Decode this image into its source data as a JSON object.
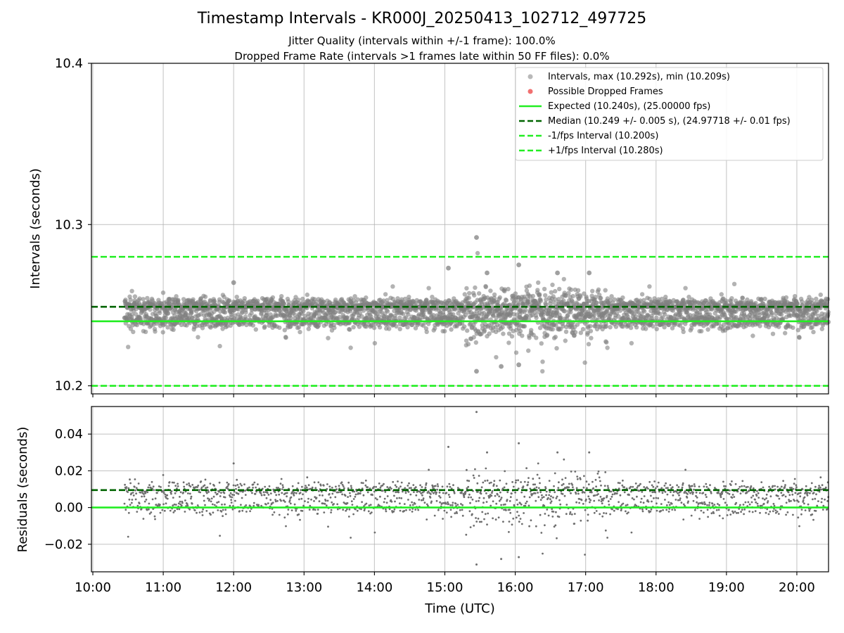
{
  "chart_data": {
    "type": "scatter",
    "title": "Timestamp Intervals - KR000J_20250413_102712_497725",
    "subtitle_lines": [
      "Jitter Quality (intervals within +/-1 frame): 100.0%",
      "Dropped Frame Rate (intervals >1 frames late within 50 FF files): 0.0%"
    ],
    "xlabel": "Time (UTC)",
    "x_tick_labels": [
      "10:00",
      "11:00",
      "12:00",
      "13:00",
      "14:00",
      "15:00",
      "16:00",
      "17:00",
      "18:00",
      "19:00",
      "20:00"
    ],
    "x_tick_hours": [
      10,
      11,
      12,
      13,
      14,
      15,
      16,
      17,
      18,
      19,
      20
    ],
    "xlim_hours": [
      9.98,
      20.45
    ],
    "data_span_hours": [
      10.45,
      20.45
    ],
    "grid": true,
    "legend_position": "top-right",
    "panels": [
      {
        "name": "intervals",
        "ylabel": "Intervals (seconds)",
        "ylim": [
          10.195,
          10.4
        ],
        "y_ticks": [
          10.2,
          10.3,
          10.4
        ],
        "y_tick_labels": [
          "10.2",
          "10.3",
          "10.4"
        ],
        "scatter_series": "Intervals, max (10.292s), min (10.209s)",
        "scatter_color": "#808080",
        "dropped_frames_series": "Possible Dropped Frames",
        "dropped_frames_color": "#f06060",
        "dropped_frames_count": 0,
        "max_interval": 10.292,
        "min_interval": 10.209,
        "lines": [
          {
            "name": "Expected (10.240s), (25.00000 fps)",
            "y": 10.24,
            "color": "#22ee22",
            "style": "solid"
          },
          {
            "name": "Median (10.249 +/- 0.005 s), (24.97718 +/- 0.01 fps)",
            "y": 10.249,
            "color": "#006400",
            "style": "dashed"
          },
          {
            "name": "-1/fps Interval (10.200s)",
            "y": 10.2,
            "color": "#22ee22",
            "style": "dashed"
          },
          {
            "name": "+1/fps Interval (10.280s)",
            "y": 10.28,
            "color": "#22ee22",
            "style": "dashed"
          }
        ],
        "clusters": {
          "upper_mean": 10.2495,
          "lower_mean": 10.2405,
          "spread_sd": 0.0025
        },
        "outliers": [
          {
            "t": 15.45,
            "y": 10.292
          },
          {
            "t": 15.45,
            "y": 10.209
          },
          {
            "t": 15.05,
            "y": 10.273
          },
          {
            "t": 16.05,
            "y": 10.275
          },
          {
            "t": 16.6,
            "y": 10.27
          },
          {
            "t": 17.05,
            "y": 10.27
          },
          {
            "t": 15.8,
            "y": 10.212
          },
          {
            "t": 16.05,
            "y": 10.213
          },
          {
            "t": 12.0,
            "y": 10.264
          },
          {
            "t": 15.6,
            "y": 10.27
          }
        ]
      },
      {
        "name": "residuals",
        "ylabel": "Residuals (seconds)",
        "ylim": [
          -0.035,
          0.055
        ],
        "y_ticks": [
          -0.02,
          0.0,
          0.02,
          0.04
        ],
        "y_tick_labels": [
          "−0.02",
          "0.00",
          "0.02",
          "0.04"
        ],
        "scatter_color": "#6e6e6e",
        "lines": [
          {
            "name": "Expected",
            "y": 0.0,
            "color": "#22ee22",
            "style": "solid"
          },
          {
            "name": "Median",
            "y": 0.0095,
            "color": "#006400",
            "style": "dashed"
          }
        ],
        "max_residual": 0.052,
        "min_residual": -0.031
      }
    ]
  }
}
